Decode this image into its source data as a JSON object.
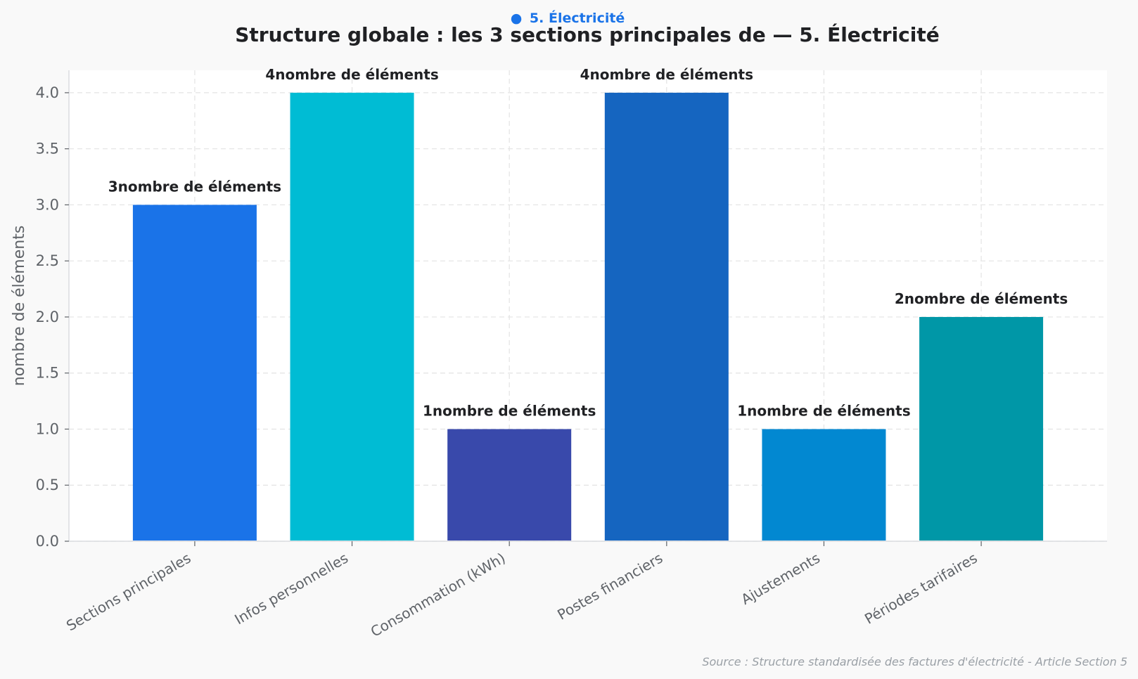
{
  "badge": {
    "dot": "●",
    "label": "5. Électricité",
    "color": "#1a73e8"
  },
  "source": "Source : Structure standardisée des factures d'électricité - Article Section 5",
  "chart_data": {
    "type": "bar",
    "title": "Structure globale : les 3 sections principales de  — 5. Électricité",
    "xlabel": "",
    "ylabel": "nombre de éléments",
    "categories": [
      "Sections principales",
      "Infos personnelles",
      "Consommation (kWh)",
      "Postes financiers",
      "Ajustements",
      "Périodes tarifaires"
    ],
    "values": [
      3,
      4,
      1,
      4,
      1,
      2
    ],
    "value_labels": [
      "3nombre de éléments",
      "4nombre de éléments",
      "1nombre de éléments",
      "4nombre de éléments",
      "1nombre de éléments",
      "2nombre de éléments"
    ],
    "colors": [
      "#1a73e8",
      "#00bcd4",
      "#3949ab",
      "#1565c0",
      "#0288d1",
      "#0097a7"
    ],
    "ylim": [
      0,
      4.2
    ],
    "yticks": [
      0,
      0.5,
      1,
      1.5,
      2,
      2.5,
      3,
      3.5,
      4
    ],
    "ytick_labels": [
      "0.0",
      "0.5",
      "1.0",
      "1.5",
      "2.0",
      "2.5",
      "3.0",
      "3.5",
      "4.0"
    ],
    "grid": true
  }
}
